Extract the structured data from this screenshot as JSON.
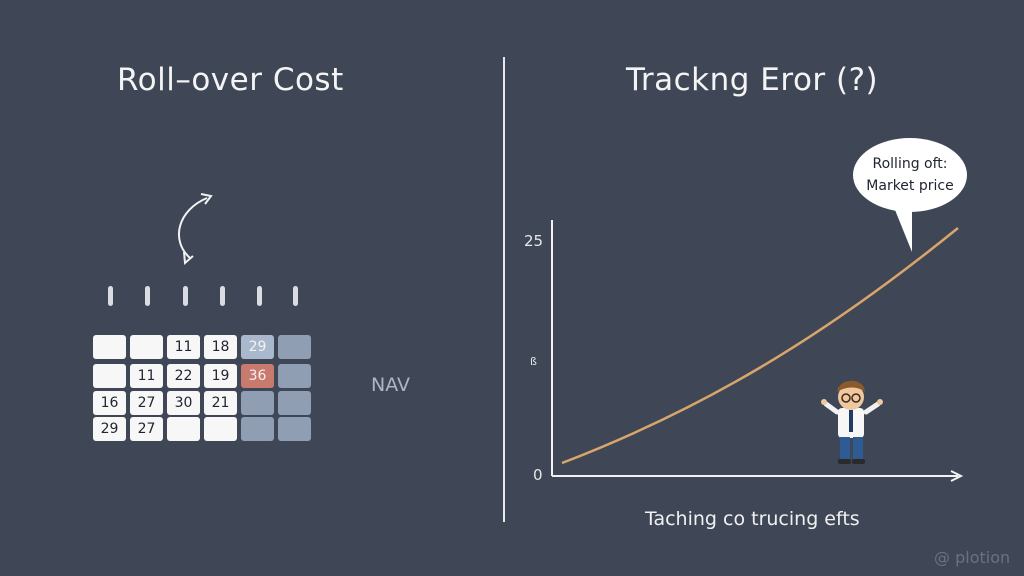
{
  "left": {
    "title": "Roll–over Cost",
    "nav_label": "NAV",
    "calendar": {
      "rows": [
        [
          {
            "v": "",
            "s": "w"
          },
          {
            "v": "",
            "s": "w"
          },
          {
            "v": "11",
            "s": "w"
          },
          {
            "v": "18",
            "s": "w"
          },
          {
            "v": "29",
            "s": "lb"
          },
          {
            "v": "",
            "s": "b"
          }
        ],
        [
          {
            "v": "",
            "s": "w"
          },
          {
            "v": "11",
            "s": "w"
          },
          {
            "v": "22",
            "s": "w"
          },
          {
            "v": "19",
            "s": "w"
          },
          {
            "v": "36",
            "s": "r"
          },
          {
            "v": "",
            "s": "b"
          }
        ],
        [
          {
            "v": "16",
            "s": "w"
          },
          {
            "v": "27",
            "s": "w"
          },
          {
            "v": "30",
            "s": "w"
          },
          {
            "v": "21",
            "s": "w"
          },
          {
            "v": "",
            "s": "b"
          },
          {
            "v": "",
            "s": "b"
          }
        ],
        [
          {
            "v": "29",
            "s": "w"
          },
          {
            "v": "27",
            "s": "w"
          },
          {
            "v": "",
            "s": "w"
          },
          {
            "v": "",
            "s": "w"
          },
          {
            "v": "",
            "s": "b"
          },
          {
            "v": "",
            "s": "b"
          }
        ]
      ],
      "highlight_color": "#c97a6f"
    }
  },
  "right": {
    "title": "Trackng Eror (?)",
    "y_ticks": {
      "top": "25",
      "mid": "ß",
      "bottom": "0"
    },
    "x_axis_label": "Taching co trucing efts",
    "bubble_lines": [
      "Rolling oft:",
      "Market price"
    ],
    "curve_color": "#d9a56a"
  },
  "watermark": "@ plotion"
}
